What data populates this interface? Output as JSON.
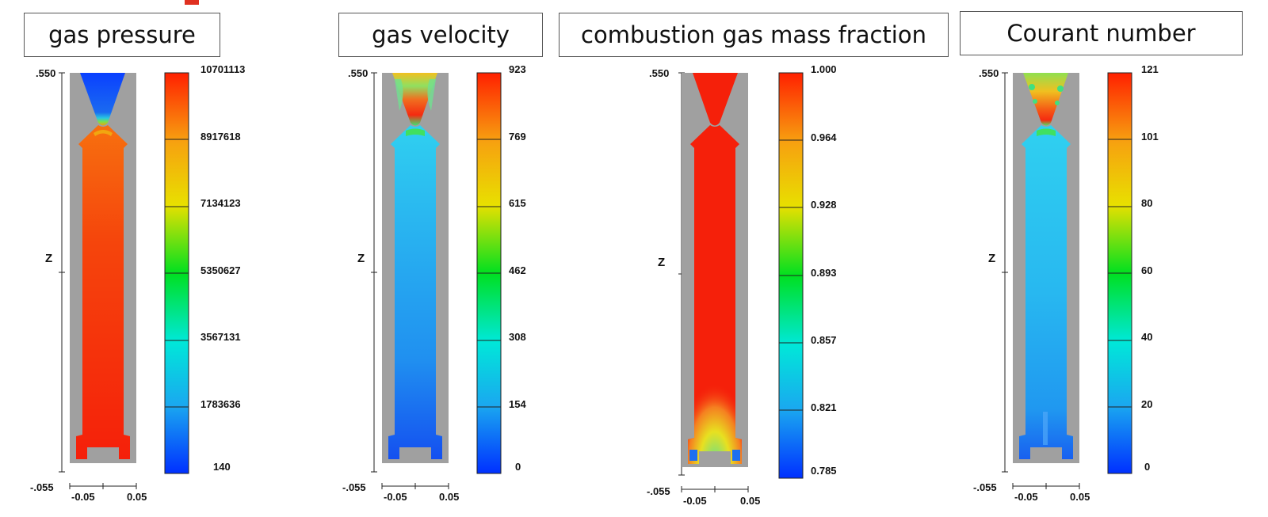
{
  "panels": [
    {
      "key": "pressure",
      "title": "gas pressure",
      "fill": "pressure",
      "y_top_label": ".550",
      "y_bottom_label": "-.055",
      "z_label": "Z",
      "x_tick_labels": [
        "-0.05",
        "0.05"
      ],
      "colorbar_labels": [
        "10701113",
        "8917618",
        "7134123",
        "5350627",
        "3567131",
        "1783636",
        "140"
      ]
    },
    {
      "key": "velocity",
      "title": "gas velocity",
      "fill": "velocity",
      "y_top_label": ".550",
      "y_bottom_label": "-.055",
      "z_label": "Z",
      "x_tick_labels": [
        "-0.05",
        "0.05"
      ],
      "colorbar_labels": [
        "923",
        "769",
        "615",
        "462",
        "308",
        "154",
        "0"
      ]
    },
    {
      "key": "massfraction",
      "title": "combustion gas mass fraction",
      "fill": "massfraction",
      "y_top_label": ".550",
      "y_bottom_label": "-.055",
      "z_label": "Z",
      "x_tick_labels": [
        "-0.05",
        "0.05"
      ],
      "colorbar_labels": [
        "1.000",
        "0.964",
        "0.928",
        "0.893",
        "0.857",
        "0.821",
        "0.785"
      ]
    },
    {
      "key": "courant",
      "title": "Courant number",
      "fill": "courant",
      "y_top_label": ".550",
      "y_bottom_label": "-.055",
      "z_label": "Z",
      "x_tick_labels": [
        "-0.05",
        "0.05"
      ],
      "colorbar_labels": [
        "121",
        "101",
        "80",
        "60",
        "40",
        "20",
        "0"
      ]
    }
  ],
  "colors": {
    "solid_gray": "#a0a0a0",
    "red": "#f5200a",
    "orange": "#f7650f",
    "cyan_light": "#2ec8ef",
    "blue": "#1e5ff0",
    "deep_blue": "#0030ff"
  }
}
